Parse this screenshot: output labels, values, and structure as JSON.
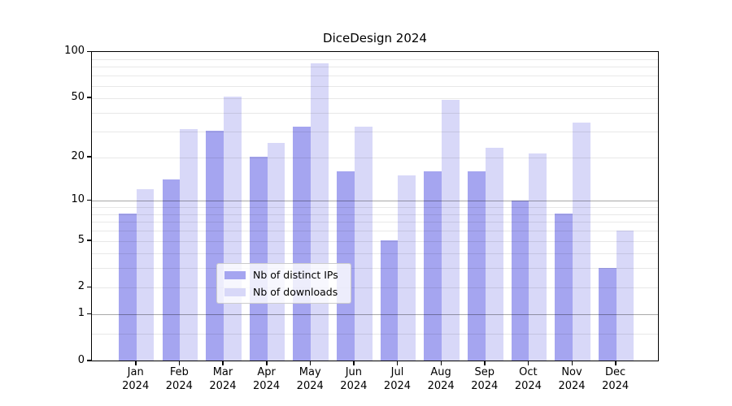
{
  "title": "DiceDesign 2024",
  "chart_data": {
    "type": "bar",
    "title": "DiceDesign 2024",
    "categories": [
      "Jan",
      "Feb",
      "Mar",
      "Apr",
      "May",
      "Jun",
      "Jul",
      "Aug",
      "Sep",
      "Oct",
      "Nov",
      "Dec"
    ],
    "x_sublabel_year": "2024",
    "series": [
      {
        "name": "Nb of distinct IPs",
        "color": "#a5a5f0",
        "values": [
          8,
          14,
          30,
          20,
          32,
          16,
          5,
          16,
          16,
          10,
          8,
          3
        ]
      },
      {
        "name": "Nb of downloads",
        "color": "#d8d8f8",
        "values": [
          12,
          31,
          51,
          25,
          84,
          32,
          15,
          48,
          23,
          21,
          34,
          6
        ]
      }
    ],
    "y_scale": "log1p",
    "y_axis_ticks": [
      {
        "value": 100,
        "label": "100"
      },
      {
        "value": 50,
        "label": "50"
      },
      {
        "value": 20,
        "label": "20"
      },
      {
        "value": 10,
        "label": "10"
      },
      {
        "value": 5,
        "label": "5"
      },
      {
        "value": 2,
        "label": "2"
      },
      {
        "value": 1,
        "label": "1"
      },
      {
        "value": 0,
        "label": "0"
      }
    ],
    "ylim": [
      0,
      100
    ],
    "gridlines": {
      "minor_values": [
        0.5,
        2,
        3,
        4,
        5,
        6,
        7,
        8,
        9,
        20,
        30,
        40,
        50,
        60,
        70,
        80,
        90
      ],
      "major_values": [
        1,
        10
      ]
    },
    "grid": "horizontal",
    "legend_position": "lower center"
  },
  "colors": {
    "background": "#ffffff",
    "bar_dark": "#a5a5f0",
    "bar_light": "#d8d8f8",
    "axis": "#000000",
    "legend_border": "#cccccc"
  }
}
